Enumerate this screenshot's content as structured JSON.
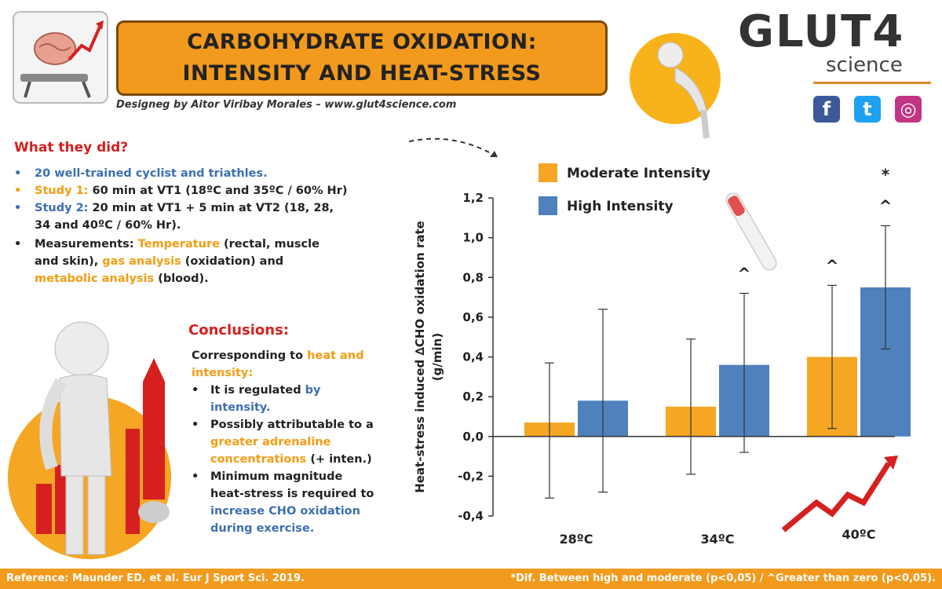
{
  "header": {
    "title_line1": "CARBOHYDRATE OXIDATION:",
    "title_line2": "INTENSITY AND HEAT-STRESS",
    "byline": "Designeg by Aitor Viribay Morales – www.glut4science.com"
  },
  "logo": {
    "main": "GLUT4",
    "sub": "science",
    "social": [
      {
        "name": "facebook-icon",
        "glyph": "f",
        "color": "#3b5998"
      },
      {
        "name": "twitter-icon",
        "glyph": "t",
        "color": "#1da1f2"
      },
      {
        "name": "instagram-icon",
        "glyph": "◎",
        "color": "#c13584"
      }
    ]
  },
  "what_they_did": {
    "heading": "What they did?",
    "b1": "20 well-trained cyclist and triathles.",
    "b2_label": "Study 1:",
    "b2_text": " 60 min at VT1 (18ºC and 35ºC / 60% Hr)",
    "b3_label": "Study 2:",
    "b3_text1": " 20 min at VT1 + 5 min at VT2 (18, 28,",
    "b3_text2": "34 and 40ºC / 60% Hr).",
    "b4_pre": "Measurements: ",
    "b4_t1": "Temperature",
    "b4_mid1": " (rectal, muscle",
    "b4_line2": "and skin), ",
    "b4_t2": "gas analysis",
    "b4_mid2": " (oxidation) and",
    "b4_t3": "metabolic analysis",
    "b4_end": " (blood)."
  },
  "conclusions": {
    "heading": "Conclusions:",
    "intro1": "Corresponding to ",
    "intro_heat": "heat and",
    "intro_intensity": "intensity:",
    "c1_a": "It is regulated ",
    "c1_by": "by",
    "c1_intensity": "intensity.",
    "c2_a": "Possibly attributable to a",
    "c2_b": "greater adrenaline",
    "c2_c": "concentrations",
    "c2_d": " (+ inten.)",
    "c3_a": "Minimum magnitude",
    "c3_b": "heat-stress is required to",
    "c3_c": "increase CHO oxidation",
    "c3_d": "during exercise."
  },
  "footer": {
    "reference": "Reference: Maunder ED, et al. Eur J Sport Sci. 2019.",
    "note": "*Dif. Between high and moderate (p<0,05) / ^Greater than zero (p<0,05)."
  },
  "chart_data": {
    "type": "bar",
    "categories": [
      "28ºC",
      "34ºC",
      "40ºC"
    ],
    "ylabel_line1": "Heat-stress induced ∆CHO oxidation rate",
    "ylabel_line2": "(g/min)",
    "ylim": [
      -0.4,
      1.2
    ],
    "yticks": [
      1.2,
      1.0,
      0.8,
      0.6,
      0.4,
      0.2,
      0.0,
      -0.2,
      -0.4
    ],
    "ytick_labels": [
      "1,2",
      "1,0",
      "0,8",
      "0,6",
      "0,4",
      "0,2",
      "0,0",
      "-0,2",
      "-0,4"
    ],
    "legend_position": "top-left",
    "grid": false,
    "series": [
      {
        "name": "Moderate Intensity",
        "color": "#f5a623",
        "values": [
          0.07,
          0.15,
          0.4
        ],
        "err_low": [
          -0.31,
          -0.19,
          0.04
        ],
        "err_high": [
          0.37,
          0.49,
          0.76
        ],
        "marks": [
          "",
          "",
          "^"
        ]
      },
      {
        "name": "High Intensity",
        "color": "#4f81bd",
        "values": [
          0.18,
          0.36,
          0.75
        ],
        "err_low": [
          -0.28,
          -0.08,
          0.44
        ],
        "err_high": [
          0.64,
          0.72,
          1.06
        ],
        "marks": [
          "",
          "^",
          "^"
        ]
      }
    ],
    "group_marks": [
      "",
      "",
      "*"
    ]
  }
}
